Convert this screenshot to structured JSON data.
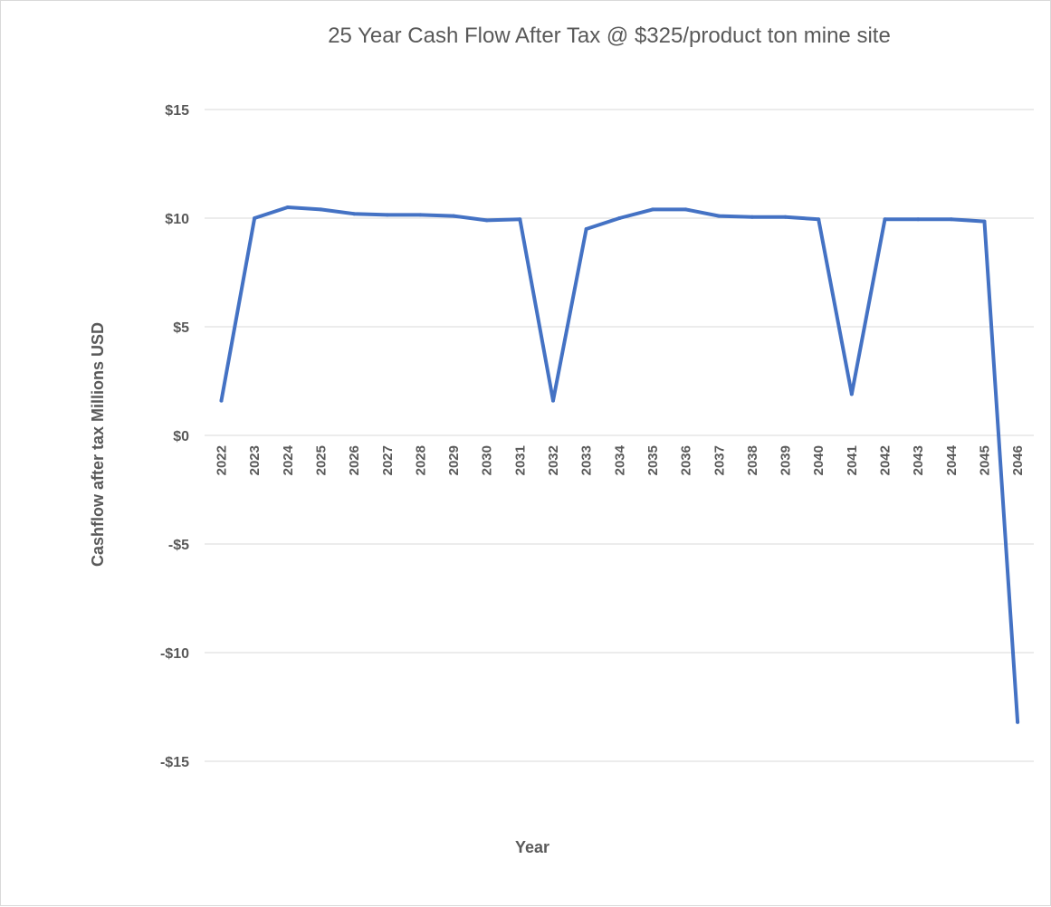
{
  "chart_data": {
    "type": "line",
    "title": "25 Year Cash Flow After Tax @ $325/product ton mine site",
    "xlabel": "Year",
    "ylabel": "Cashflow after tax Millions USD",
    "ylim": [
      -15,
      15
    ],
    "yticks": [
      15,
      10,
      5,
      0,
      -5,
      -10,
      -15
    ],
    "ytick_labels": [
      "$15",
      "$10",
      "$5",
      "$0",
      "-$5",
      "-$10",
      "-$15"
    ],
    "grid": true,
    "categories": [
      "2022",
      "2023",
      "2024",
      "2025",
      "2026",
      "2027",
      "2028",
      "2029",
      "2030",
      "2031",
      "2032",
      "2033",
      "2034",
      "2035",
      "2036",
      "2037",
      "2038",
      "2039",
      "2040",
      "2041",
      "2042",
      "2043",
      "2044",
      "2045",
      "2046"
    ],
    "series": [
      {
        "color": "#4472c4",
        "values": [
          1.6,
          10.0,
          10.5,
          10.4,
          10.2,
          10.15,
          10.15,
          10.1,
          9.9,
          9.95,
          1.6,
          9.5,
          10.0,
          10.4,
          10.4,
          10.1,
          10.05,
          10.05,
          9.95,
          1.9,
          9.95,
          9.95,
          9.95,
          9.85,
          -13.2
        ]
      }
    ]
  }
}
